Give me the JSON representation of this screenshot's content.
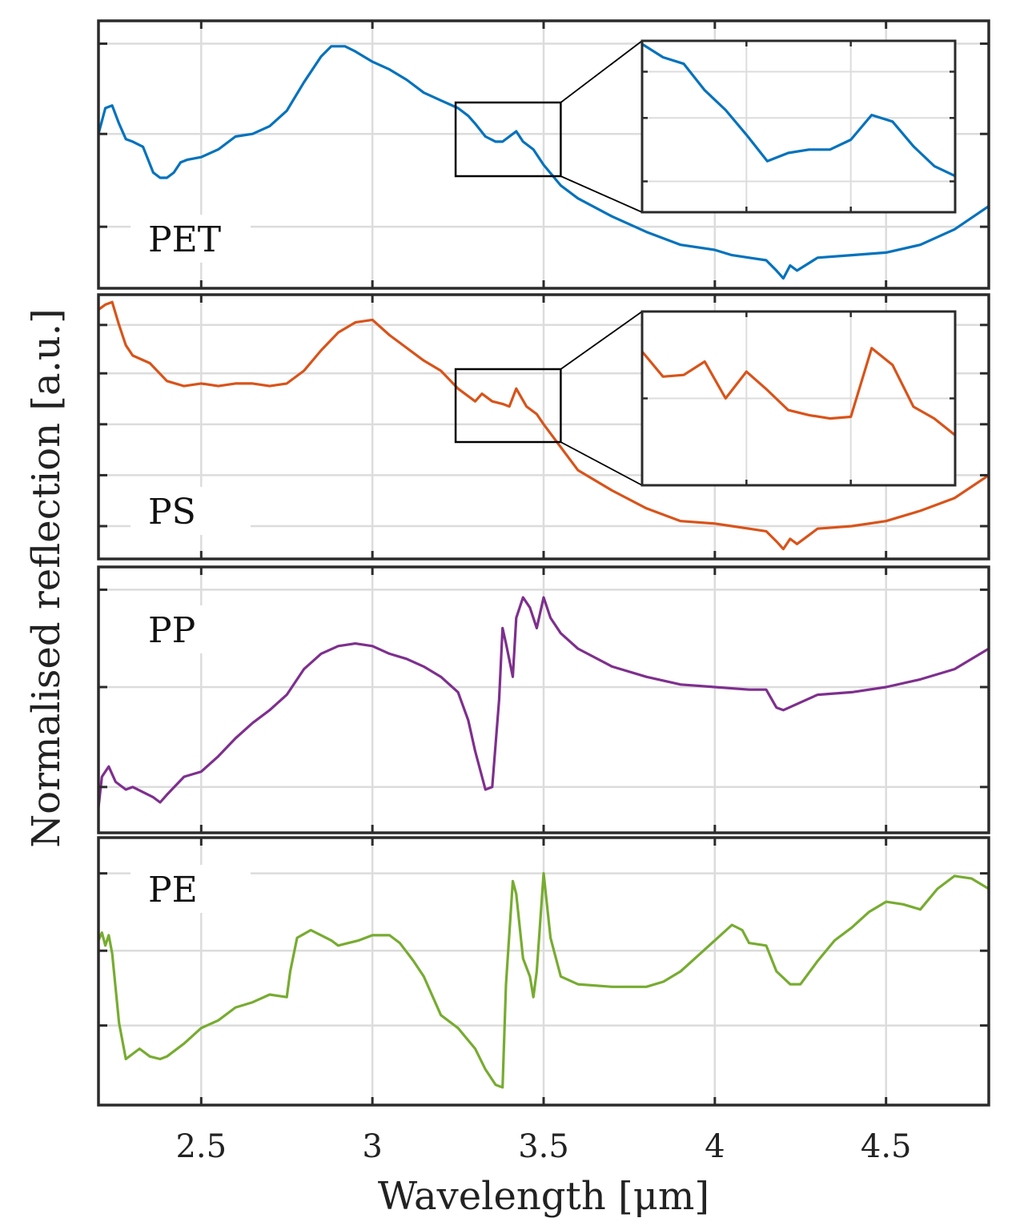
{
  "chart_data": {
    "type": "line",
    "title": "",
    "xlabel": "Wavelength [μm]",
    "ylabel": "Normalised reflection [a.u.]",
    "xlim": [
      2.2,
      4.8
    ],
    "xticks": [
      2.5,
      3,
      3.5,
      4,
      4.5
    ],
    "xtick_labels": [
      "2.5",
      "3",
      "3.5",
      "4",
      "4.5"
    ],
    "grid": true,
    "y_tick_labels_shown": false,
    "panels": [
      {
        "name": "PET",
        "label": "PET",
        "color": "#0072BD",
        "ylim": [
          0,
          1
        ],
        "yticks": [
          0.22,
          0.58,
          0.93
        ],
        "x": [
          2.2,
          2.22,
          2.24,
          2.26,
          2.28,
          2.3,
          2.33,
          2.36,
          2.38,
          2.4,
          2.42,
          2.44,
          2.46,
          2.5,
          2.55,
          2.6,
          2.65,
          2.7,
          2.75,
          2.8,
          2.85,
          2.88,
          2.92,
          2.95,
          3.0,
          3.05,
          3.1,
          3.15,
          3.2,
          3.25,
          3.28,
          3.3,
          3.33,
          3.36,
          3.38,
          3.4,
          3.42,
          3.44,
          3.47,
          3.5,
          3.55,
          3.6,
          3.7,
          3.8,
          3.9,
          4.0,
          4.05,
          4.1,
          4.15,
          4.18,
          4.2,
          4.22,
          4.24,
          4.3,
          4.4,
          4.5,
          4.6,
          4.7,
          4.8
        ],
        "y": [
          0.58,
          0.68,
          0.69,
          0.62,
          0.56,
          0.55,
          0.53,
          0.43,
          0.41,
          0.41,
          0.43,
          0.47,
          0.48,
          0.49,
          0.52,
          0.57,
          0.58,
          0.61,
          0.67,
          0.78,
          0.88,
          0.92,
          0.92,
          0.9,
          0.86,
          0.83,
          0.79,
          0.74,
          0.71,
          0.68,
          0.65,
          0.62,
          0.57,
          0.55,
          0.55,
          0.57,
          0.59,
          0.55,
          0.52,
          0.46,
          0.38,
          0.33,
          0.26,
          0.2,
          0.15,
          0.13,
          0.11,
          0.1,
          0.09,
          0.05,
          0.02,
          0.07,
          0.05,
          0.1,
          0.11,
          0.12,
          0.15,
          0.21,
          0.3
        ],
        "inset": {
          "zoom_x_range": [
            3.25,
            3.55
          ],
          "x": [
            3.25,
            3.27,
            3.29,
            3.31,
            3.33,
            3.35,
            3.37,
            3.39,
            3.41,
            3.43,
            3.45,
            3.47,
            3.49,
            3.51,
            3.53,
            3.55
          ],
          "y": [
            1.0,
            0.92,
            0.88,
            0.72,
            0.6,
            0.45,
            0.29,
            0.34,
            0.36,
            0.36,
            0.42,
            0.57,
            0.53,
            0.38,
            0.26,
            0.2
          ]
        }
      },
      {
        "name": "PS",
        "label": "PS",
        "color": "#D95319",
        "ylim": [
          0,
          1
        ],
        "yticks": [
          0.11,
          0.31,
          0.51,
          0.71,
          0.9
        ],
        "x": [
          2.2,
          2.22,
          2.24,
          2.26,
          2.28,
          2.3,
          2.35,
          2.4,
          2.45,
          2.5,
          2.55,
          2.6,
          2.65,
          2.7,
          2.75,
          2.8,
          2.85,
          2.9,
          2.95,
          3.0,
          3.05,
          3.1,
          3.15,
          3.2,
          3.25,
          3.28,
          3.3,
          3.32,
          3.35,
          3.38,
          3.4,
          3.42,
          3.45,
          3.48,
          3.5,
          3.55,
          3.6,
          3.7,
          3.8,
          3.9,
          4.0,
          4.05,
          4.1,
          4.15,
          4.18,
          4.2,
          4.22,
          4.24,
          4.3,
          4.4,
          4.5,
          4.6,
          4.7,
          4.8
        ],
        "y": [
          0.96,
          0.98,
          0.99,
          0.9,
          0.82,
          0.78,
          0.75,
          0.68,
          0.66,
          0.67,
          0.66,
          0.67,
          0.67,
          0.66,
          0.67,
          0.72,
          0.8,
          0.87,
          0.91,
          0.92,
          0.86,
          0.81,
          0.76,
          0.72,
          0.65,
          0.62,
          0.6,
          0.63,
          0.6,
          0.59,
          0.58,
          0.65,
          0.58,
          0.55,
          0.51,
          0.42,
          0.33,
          0.25,
          0.18,
          0.13,
          0.12,
          0.11,
          0.1,
          0.09,
          0.05,
          0.02,
          0.06,
          0.04,
          0.1,
          0.11,
          0.13,
          0.17,
          0.22,
          0.31
        ],
        "inset": {
          "zoom_x_range": [
            3.25,
            3.55
          ],
          "x": [
            3.25,
            3.27,
            3.29,
            3.31,
            3.33,
            3.35,
            3.37,
            3.39,
            3.41,
            3.43,
            3.45,
            3.47,
            3.49,
            3.51,
            3.53,
            3.55
          ],
          "y": [
            0.78,
            0.63,
            0.64,
            0.72,
            0.5,
            0.66,
            0.55,
            0.43,
            0.4,
            0.38,
            0.39,
            0.8,
            0.7,
            0.45,
            0.38,
            0.28
          ]
        }
      },
      {
        "name": "PP",
        "label": "PP",
        "color": "#7E2F8E",
        "ylim": [
          0,
          1
        ],
        "yticks": [
          0.16,
          0.55,
          0.93
        ],
        "x": [
          2.2,
          2.21,
          2.23,
          2.25,
          2.28,
          2.3,
          2.33,
          2.36,
          2.38,
          2.4,
          2.45,
          2.5,
          2.55,
          2.6,
          2.65,
          2.7,
          2.75,
          2.8,
          2.85,
          2.9,
          2.95,
          3.0,
          3.05,
          3.1,
          3.15,
          3.2,
          3.25,
          3.28,
          3.3,
          3.33,
          3.35,
          3.37,
          3.38,
          3.39,
          3.41,
          3.42,
          3.44,
          3.46,
          3.48,
          3.5,
          3.52,
          3.55,
          3.6,
          3.7,
          3.8,
          3.9,
          4.0,
          4.1,
          4.15,
          4.18,
          4.2,
          4.25,
          4.3,
          4.4,
          4.5,
          4.6,
          4.7,
          4.8
        ],
        "y": [
          0.08,
          0.2,
          0.24,
          0.18,
          0.15,
          0.16,
          0.14,
          0.12,
          0.1,
          0.13,
          0.2,
          0.22,
          0.28,
          0.35,
          0.41,
          0.46,
          0.52,
          0.62,
          0.68,
          0.71,
          0.72,
          0.71,
          0.68,
          0.66,
          0.63,
          0.59,
          0.53,
          0.42,
          0.3,
          0.15,
          0.16,
          0.5,
          0.78,
          0.72,
          0.59,
          0.82,
          0.9,
          0.86,
          0.78,
          0.9,
          0.82,
          0.76,
          0.7,
          0.63,
          0.59,
          0.56,
          0.55,
          0.54,
          0.54,
          0.47,
          0.46,
          0.49,
          0.52,
          0.53,
          0.55,
          0.58,
          0.62,
          0.7
        ],
        "inset": null
      },
      {
        "name": "PE",
        "label": "PE",
        "color": "#77AC30",
        "ylim": [
          0,
          1
        ],
        "yticks": [
          0.29,
          0.58,
          0.88
        ],
        "x": [
          2.2,
          2.21,
          2.22,
          2.23,
          2.24,
          2.26,
          2.28,
          2.3,
          2.32,
          2.35,
          2.38,
          2.4,
          2.42,
          2.45,
          2.5,
          2.55,
          2.6,
          2.65,
          2.7,
          2.75,
          2.76,
          2.78,
          2.82,
          2.85,
          2.88,
          2.9,
          2.93,
          2.96,
          3.0,
          3.05,
          3.08,
          3.12,
          3.15,
          3.2,
          3.25,
          3.3,
          3.33,
          3.36,
          3.38,
          3.39,
          3.41,
          3.42,
          3.44,
          3.46,
          3.47,
          3.48,
          3.5,
          3.52,
          3.55,
          3.6,
          3.7,
          3.8,
          3.85,
          3.9,
          3.95,
          4.0,
          4.05,
          4.08,
          4.1,
          4.15,
          4.18,
          4.22,
          4.25,
          4.3,
          4.35,
          4.4,
          4.45,
          4.5,
          4.55,
          4.6,
          4.65,
          4.7,
          4.75,
          4.8
        ],
        "y": [
          0.62,
          0.65,
          0.6,
          0.64,
          0.57,
          0.3,
          0.16,
          0.18,
          0.2,
          0.17,
          0.16,
          0.17,
          0.19,
          0.22,
          0.28,
          0.31,
          0.36,
          0.38,
          0.41,
          0.4,
          0.5,
          0.63,
          0.66,
          0.64,
          0.62,
          0.6,
          0.61,
          0.62,
          0.64,
          0.64,
          0.61,
          0.54,
          0.48,
          0.33,
          0.28,
          0.2,
          0.12,
          0.06,
          0.05,
          0.45,
          0.85,
          0.8,
          0.55,
          0.48,
          0.4,
          0.5,
          0.88,
          0.63,
          0.48,
          0.45,
          0.44,
          0.44,
          0.46,
          0.5,
          0.56,
          0.62,
          0.68,
          0.66,
          0.61,
          0.6,
          0.5,
          0.45,
          0.45,
          0.54,
          0.62,
          0.67,
          0.73,
          0.77,
          0.76,
          0.74,
          0.82,
          0.87,
          0.86,
          0.82
        ],
        "inset": null
      }
    ]
  }
}
